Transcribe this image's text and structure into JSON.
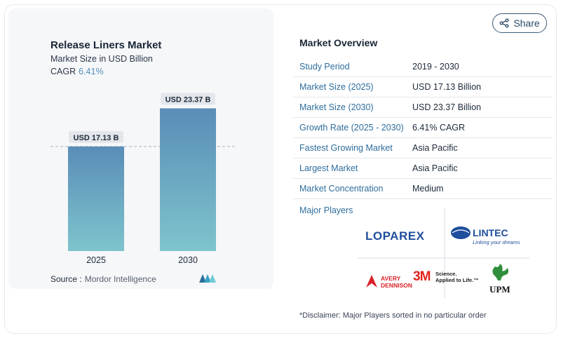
{
  "header": {
    "title": "Release Liners Market",
    "subtitle": "Market Size in USD Billion",
    "cagr_label": "CAGR",
    "cagr_value": "6.41%"
  },
  "chart_data": {
    "type": "bar",
    "categories": [
      "2025",
      "2030"
    ],
    "values": [
      17.13,
      23.37
    ],
    "data_labels": [
      "USD 17.13 B",
      "USD 23.37 B"
    ],
    "title": "Release Liners Market",
    "ylabel": "Market Size in USD Billion",
    "ylim": [
      0,
      26
    ],
    "grid": false,
    "reference_line": 17.13,
    "colors": [
      "#5a8db8",
      "#7ec4cc"
    ]
  },
  "source": {
    "label": "Source :",
    "value": "Mordor Intelligence"
  },
  "share_button": {
    "label": "Share",
    "icon": "share-icon"
  },
  "overview": {
    "title": "Market Overview",
    "rows": [
      {
        "key": "Study Period",
        "value": "2019 - 2030"
      },
      {
        "key": "Market Size (2025)",
        "value": "USD 17.13 Billion"
      },
      {
        "key": "Market Size (2030)",
        "value": "USD 23.37 Billion"
      },
      {
        "key": "Growth Rate (2025 - 2030)",
        "value": "6.41% CAGR"
      },
      {
        "key": "Fastest Growing Market",
        "value": "Asia Pacific"
      },
      {
        "key": "Largest Market",
        "value": "Asia Pacific"
      },
      {
        "key": "Market Concentration",
        "value": "Medium"
      }
    ]
  },
  "players": {
    "label": "Major Players",
    "logos": {
      "loparex": "LOPAREX",
      "lintec": "LINTEC",
      "lintec_tagline": "Linking your dreams",
      "avery_line1": "AVERY",
      "avery_line2": "DENNISON",
      "threem": "3M",
      "threem_tag1": "Science.",
      "threem_tag2": "Applied to Life.™",
      "upm": "UPM"
    }
  },
  "disclaimer": "*Disclaimer: Major Players sorted in no particular order"
}
